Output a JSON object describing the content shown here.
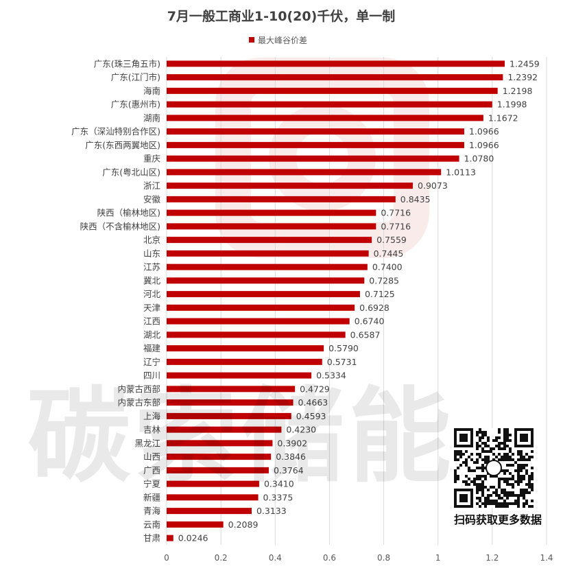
{
  "chart_data": {
    "type": "bar",
    "orientation": "horizontal",
    "title": "7月一般工商业1-10(20)千伏，单一制",
    "legend": {
      "position": "top",
      "entries": [
        "最大峰谷价差"
      ]
    },
    "series": [
      {
        "name": "最大峰谷价差",
        "color": "#c00000",
        "values": [
          1.2459,
          1.2392,
          1.2198,
          1.1998,
          1.1672,
          1.0966,
          1.0966,
          1.078,
          1.0113,
          0.9073,
          0.8435,
          0.7716,
          0.7716,
          0.7559,
          0.7445,
          0.74,
          0.7285,
          0.7125,
          0.6928,
          0.674,
          0.6587,
          0.579,
          0.5731,
          0.5334,
          0.4729,
          0.4663,
          0.4593,
          0.423,
          0.3902,
          0.3846,
          0.3764,
          0.341,
          0.3375,
          0.3133,
          0.2089,
          0.0246
        ],
        "labels": [
          "1.2459",
          "1.2392",
          "1.2198",
          "1.1998",
          "1.1672",
          "1.0966",
          "1.0966",
          "1.0780",
          "1.0113",
          "0.9073",
          "0.8435",
          "0.7716",
          "0.7716",
          "0.7559",
          "0.7445",
          "0.7400",
          "0.7285",
          "0.7125",
          "0.6928",
          "0.6740",
          "0.6587",
          "0.5790",
          "0.5731",
          "0.5334",
          "0.4729",
          "0.4663",
          "0.4593",
          "0.4230",
          "0.3902",
          "0.3846",
          "0.3764",
          "0.3410",
          "0.3375",
          "0.3133",
          "0.2089",
          "0.0246"
        ]
      }
    ],
    "categories": [
      "广东(珠三角五市)",
      "广东(江门市)",
      "海南",
      "广东(惠州市)",
      "湖南",
      "广东（深汕特别合作区)",
      "广东(东西两翼地区)",
      "重庆",
      "广东(粤北山区)",
      "浙江",
      "安徽",
      "陕西（榆林地区)",
      "陕西（不含榆林地区)",
      "北京",
      "山东",
      "江苏",
      "冀北",
      "河北",
      "天津",
      "江西",
      "湖北",
      "福建",
      "辽宁",
      "四川",
      "内蒙古西部",
      "内蒙古东部",
      "上海",
      "吉林",
      "黑龙江",
      "山西",
      "广西",
      "宁夏",
      "新疆",
      "青海",
      "云南",
      "甘肃"
    ],
    "xlim": [
      0,
      1.4
    ],
    "xticks": [
      "0",
      "0.2",
      "0.4",
      "0.6",
      "0.8",
      "1",
      "1.2",
      "1.4"
    ],
    "grid": "vertical"
  },
  "watermark": {
    "text": "碳索储能"
  },
  "qr": {
    "caption": "扫码获取更多数据"
  }
}
